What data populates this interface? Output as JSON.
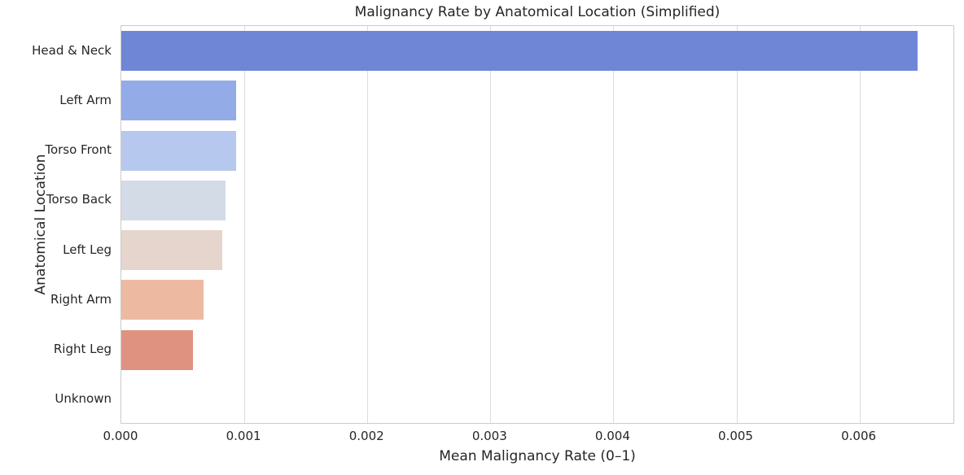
{
  "chart_data": {
    "type": "bar",
    "orientation": "horizontal",
    "title": "Malignancy Rate by Anatomical Location (Simplified)",
    "xlabel": "Mean Malignancy Rate (0–1)",
    "ylabel": "Anatomical Location",
    "categories": [
      "Head & Neck",
      "Left Arm",
      "Torso Front",
      "Torso Back",
      "Left Leg",
      "Right Arm",
      "Right Leg",
      "Unknown"
    ],
    "values": [
      0.00647,
      0.00093,
      0.00093,
      0.00085,
      0.00082,
      0.00067,
      0.00058,
      0.0
    ],
    "bar_colors": [
      "#6f86d7",
      "#93abe7",
      "#b7c8ee",
      "#d3dbe7",
      "#e5d5cc",
      "#edbaa1",
      "#df9280",
      null
    ],
    "palette": "coolwarm",
    "xlim": [
      0,
      0.00678
    ],
    "xticks": [
      0.0,
      0.001,
      0.002,
      0.003,
      0.004,
      0.005,
      0.006
    ],
    "xtick_labels": [
      "0.000",
      "0.001",
      "0.002",
      "0.003",
      "0.004",
      "0.005",
      "0.006"
    ],
    "grid": true,
    "legend": false
  },
  "style": {
    "background": "#ffffff",
    "grid_color": "#dcdcdc",
    "spine_color": "#cbcbcb",
    "text_color": "#262626"
  }
}
